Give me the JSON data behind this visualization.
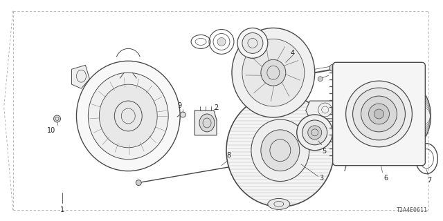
{
  "bg_color": "#ffffff",
  "border_color": "#aaaaaa",
  "diagram_code": "T2A4E0611",
  "line_color": "#4a4a4a",
  "text_color": "#222222",
  "label_fontsize": 7,
  "code_fontsize": 6
}
